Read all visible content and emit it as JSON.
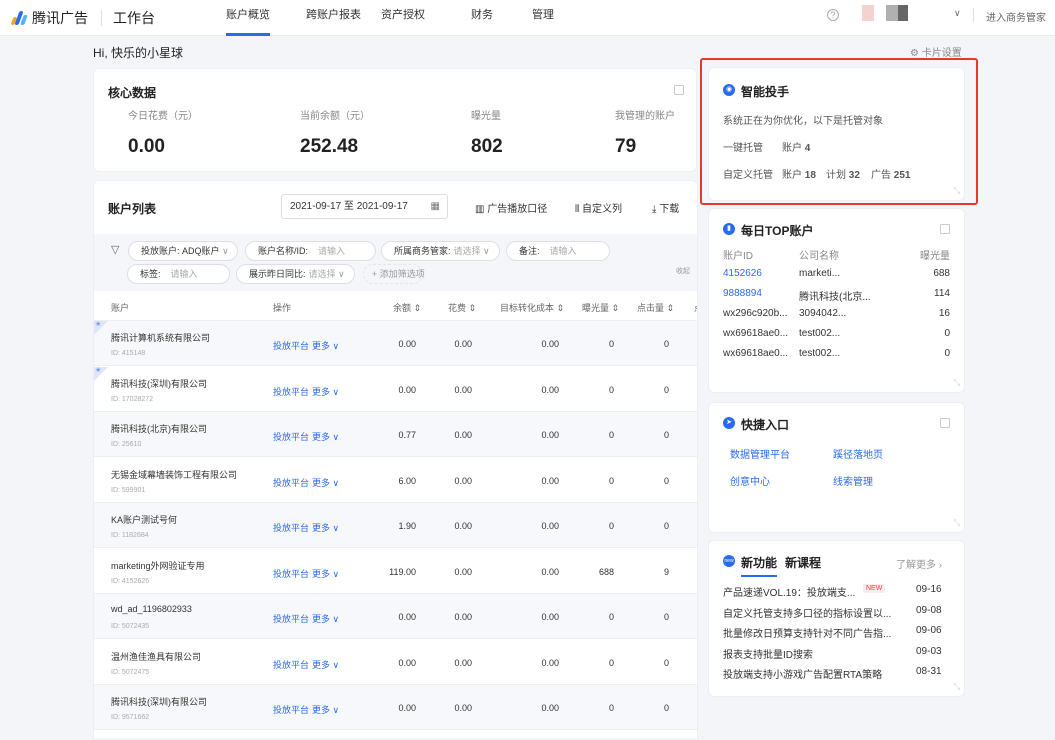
{
  "header": {
    "brand": "腾讯广告",
    "workbench": "工作台",
    "nav": [
      "账户概览",
      "跨账户报表",
      "资产授权",
      "财务",
      "管理"
    ],
    "active_nav": 0,
    "enter_label": "进入商务管家",
    "help_icon": "?"
  },
  "greeting": "Hi, 快乐的小星球",
  "card_settings": "卡片设置",
  "core": {
    "title": "核心数据",
    "kpis": [
      {
        "label": "今日花费（元）",
        "value": "0.00"
      },
      {
        "label": "当前余额（元）",
        "value": "252.48"
      },
      {
        "label": "曝光量",
        "value": "802"
      },
      {
        "label": "我管理的账户",
        "value": "79"
      }
    ]
  },
  "accounts": {
    "title": "账户列表",
    "date_range": "2021-09-17 至 2021-09-17",
    "tools": [
      "广告播放口径",
      "自定义列",
      "下载"
    ],
    "filters": [
      {
        "label": "投放账户:",
        "value": "ADQ账户"
      },
      {
        "label": "账户名称/ID:",
        "placeholder": "请输入"
      },
      {
        "label": "所属商务管家:",
        "placeholder": "请选择"
      },
      {
        "label": "备注:",
        "placeholder": "请输入"
      },
      {
        "label": "标签:",
        "placeholder": "请输入"
      },
      {
        "label": "展示昨日同比:",
        "placeholder": "请选择"
      }
    ],
    "add_filter": "+ 添加筛选项",
    "collapse": "收起",
    "columns": [
      "账户",
      "操作",
      "余额 ⇕",
      "花费 ⇕",
      "目标转化成本 ⇕",
      "曝光量 ⇕",
      "点击量 ⇕",
      "点"
    ],
    "op_label": "投放平台",
    "more_label": "更多",
    "rows": [
      {
        "name": "腾讯计算机系统有限公司",
        "id": "ID: 415148",
        "balance": "0.00",
        "cost": "0.00",
        "cpa": "0.00",
        "imp": "0",
        "clk": "0",
        "starred": true
      },
      {
        "name": "腾讯科技(深圳)有限公司",
        "id": "ID: 17028272",
        "balance": "0.00",
        "cost": "0.00",
        "cpa": "0.00",
        "imp": "0",
        "clk": "0",
        "starred": true
      },
      {
        "name": "腾讯科技(北京)有限公司",
        "id": "ID: 25610",
        "balance": "0.77",
        "cost": "0.00",
        "cpa": "0.00",
        "imp": "0",
        "clk": "0"
      },
      {
        "name": "无锡金域幕墙装饰工程有限公司",
        "id": "ID: 599901",
        "balance": "6.00",
        "cost": "0.00",
        "cpa": "0.00",
        "imp": "0",
        "clk": "0"
      },
      {
        "name": "KA账户测试号何",
        "id": "ID: 1182684",
        "balance": "1.90",
        "cost": "0.00",
        "cpa": "0.00",
        "imp": "0",
        "clk": "0"
      },
      {
        "name": "marketing外网验证专用",
        "id": "ID: 4152626",
        "balance": "119.00",
        "cost": "0.00",
        "cpa": "0.00",
        "imp": "688",
        "clk": "9"
      },
      {
        "name": "wd_ad_1196802933",
        "id": "ID: 5072435",
        "balance": "0.00",
        "cost": "0.00",
        "cpa": "0.00",
        "imp": "0",
        "clk": "0"
      },
      {
        "name": "温州渔佳渔具有限公司",
        "id": "ID: 5072475",
        "balance": "0.00",
        "cost": "0.00",
        "cpa": "0.00",
        "imp": "0",
        "clk": "0"
      },
      {
        "name": "腾讯科技(深圳)有限公司",
        "id": "ID: 9571662",
        "balance": "0.00",
        "cost": "0.00",
        "cpa": "0.00",
        "imp": "0",
        "clk": "0"
      }
    ]
  },
  "assistant": {
    "title": "智能投手",
    "desc": "系统正在为你优化，以下是托管对象",
    "one_click": "一键托管",
    "custom": "自定义托管",
    "acct_label": "账户",
    "acct_one": "4",
    "acct_custom": "18",
    "plan_label": "计划",
    "plan": "32",
    "ad_label": "广告",
    "ad": "251"
  },
  "top": {
    "title": "每日TOP账户",
    "cols": [
      "账户ID",
      "公司名称",
      "曝光量"
    ],
    "rows": [
      {
        "id": "4152626",
        "name": "marketi...",
        "imp": "688",
        "link": true
      },
      {
        "id": "9888894",
        "name": "腾讯科技(北京...",
        "imp": "114",
        "link": true
      },
      {
        "id": "wx296c920b...",
        "name": "3094042...",
        "imp": "16"
      },
      {
        "id": "wx69618ae0...",
        "name": "test002...",
        "imp": "0"
      },
      {
        "id": "wx69618ae0...",
        "name": "test002...",
        "imp": "0"
      }
    ]
  },
  "quick": {
    "title": "快捷入口",
    "links": [
      "数据管理平台",
      "蹊径落地页",
      "创意中心",
      "线索管理"
    ]
  },
  "news": {
    "tabs": [
      "新功能",
      "新课程"
    ],
    "more": "了解更多",
    "icon": "new",
    "new_tag": "NEW",
    "items": [
      {
        "text": "产品速递VOL.19：投放端支...",
        "date": "09-16"
      },
      {
        "text": "自定义托管支持多口径的指标设置以...",
        "date": "09-08"
      },
      {
        "text": "批量修改日预算支持针对不同广告指...",
        "date": "09-06"
      },
      {
        "text": "报表支持批量ID搜索",
        "date": "09-03"
      },
      {
        "text": "投放端支持小游戏广告配置RTA策略",
        "date": "08-31"
      }
    ]
  },
  "colors": {
    "accent": "#296bef",
    "highlight": "#e4392b"
  }
}
